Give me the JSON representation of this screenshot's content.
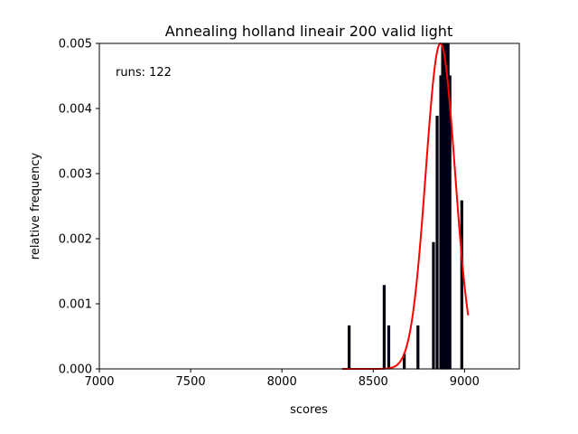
{
  "chart_data": {
    "type": "bar",
    "title": "Annealing holland lineair 200 valid light",
    "xlabel": "scores",
    "ylabel": "relative frequency",
    "annotation": "runs: 122",
    "xlim": [
      7000,
      9300
    ],
    "ylim": [
      0,
      0.005
    ],
    "xticks": [
      7000,
      7500,
      8000,
      8500,
      9000
    ],
    "xtick_labels": [
      "7000",
      "7500",
      "8000",
      "8500",
      "9000"
    ],
    "yticks": [
      0,
      0.001,
      0.002,
      0.003,
      0.004,
      0.005
    ],
    "ytick_labels": [
      "0.000",
      "0.001",
      "0.002",
      "0.003",
      "0.004",
      "0.005"
    ],
    "bar_width": 10,
    "bars": [
      {
        "x": 8368,
        "y": 0.00066
      },
      {
        "x": 8560,
        "y": 0.00128
      },
      {
        "x": 8585,
        "y": 0.00066
      },
      {
        "x": 8670,
        "y": 0.00022
      },
      {
        "x": 8745,
        "y": 0.00066
      },
      {
        "x": 8830,
        "y": 0.00194
      },
      {
        "x": 8850,
        "y": 0.00388
      },
      {
        "x": 8870,
        "y": 0.0045
      },
      {
        "x": 8880,
        "y": 0.005
      },
      {
        "x": 8890,
        "y": 0.005
      },
      {
        "x": 8900,
        "y": 0.005
      },
      {
        "x": 8910,
        "y": 0.005
      },
      {
        "x": 8920,
        "y": 0.0045
      },
      {
        "x": 8985,
        "y": 0.00258
      }
    ],
    "fit_curve": {
      "type": "normal",
      "mean": 8868,
      "std": 80,
      "peak": 0.005,
      "x_range": [
        8330,
        9020
      ],
      "color": "#ff0000"
    },
    "bar_fill": "#000033",
    "bar_edge": "#000000"
  }
}
